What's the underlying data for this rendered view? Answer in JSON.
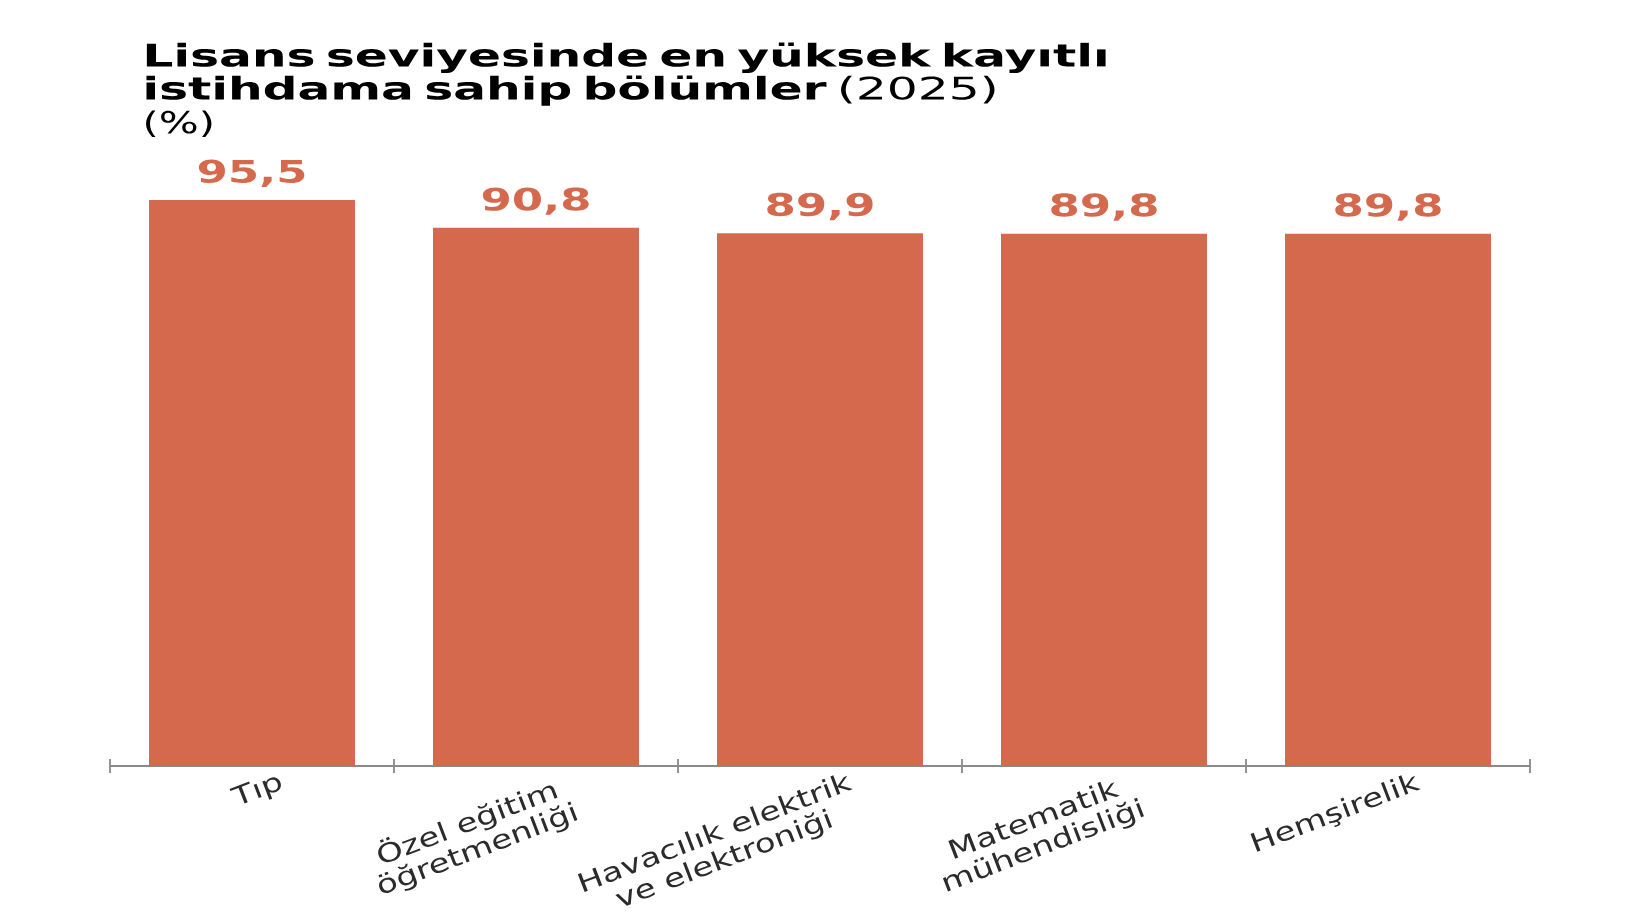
{
  "chart_data": {
    "type": "bar",
    "title": "**Lisans seviyesinde en yüksek kayıtlı istihdama sahip bölümler** (2025)",
    "subtitle": "(%)",
    "categories": [
      "Tıp",
      "Özel eğitim öğretmenliği",
      "Havacılık elektrik ve elektroniği",
      "Matematik mühendisliği",
      "Hemşirelik"
    ],
    "values": [
      95.5,
      90.8,
      89.9,
      89.8,
      89.8
    ],
    "value_labels": [
      "95,5",
      "90,8",
      "89,9",
      "89,8",
      "89,8"
    ],
    "color": "#d4694e"
  }
}
